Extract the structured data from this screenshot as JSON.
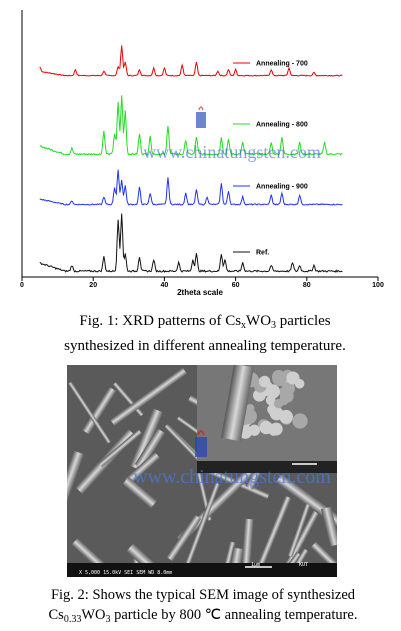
{
  "chart_data": {
    "type": "line",
    "xlabel": "2theta scale",
    "xlim": [
      0,
      100
    ],
    "xticks": [
      "0",
      "20",
      "40",
      "60",
      "80",
      "100"
    ],
    "series": [
      {
        "name": "Annealing - 700",
        "color": "#ee0000",
        "peaks": [
          [
            5,
            0.15
          ],
          [
            15,
            0.2
          ],
          [
            23,
            0.15
          ],
          [
            27,
            0.3
          ],
          [
            28,
            1.0
          ],
          [
            29,
            0.45
          ],
          [
            33,
            0.2
          ],
          [
            37,
            0.25
          ],
          [
            40,
            0.25
          ],
          [
            45,
            0.35
          ],
          [
            49,
            0.45
          ],
          [
            55,
            0.15
          ],
          [
            58,
            0.2
          ],
          [
            60,
            0.2
          ],
          [
            70,
            0.2
          ],
          [
            75,
            0.25
          ],
          [
            82,
            0.1
          ]
        ]
      },
      {
        "name": "Annealing - 800",
        "color": "#22dd22",
        "peaks": [
          [
            14,
            0.1
          ],
          [
            23,
            0.4
          ],
          [
            26,
            0.35
          ],
          [
            27,
            0.9
          ],
          [
            28,
            1.0
          ],
          [
            29,
            0.75
          ],
          [
            33,
            0.35
          ],
          [
            36,
            0.3
          ],
          [
            41,
            0.5
          ],
          [
            46,
            0.25
          ],
          [
            49,
            0.3
          ],
          [
            56,
            0.3
          ],
          [
            58,
            0.25
          ],
          [
            62,
            0.2
          ],
          [
            70,
            0.2
          ],
          [
            73,
            0.3
          ],
          [
            78,
            0.2
          ],
          [
            85,
            0.2
          ]
        ]
      },
      {
        "name": "Annealing - 900",
        "color": "#2233ee",
        "peaks": [
          [
            14,
            0.1
          ],
          [
            23,
            0.2
          ],
          [
            26,
            0.45
          ],
          [
            27,
            0.9
          ],
          [
            28,
            0.65
          ],
          [
            29,
            0.5
          ],
          [
            33,
            0.45
          ],
          [
            36,
            0.3
          ],
          [
            41,
            0.7
          ],
          [
            46,
            0.3
          ],
          [
            49,
            0.4
          ],
          [
            52,
            0.2
          ],
          [
            56,
            0.55
          ],
          [
            58,
            0.35
          ],
          [
            62,
            0.2
          ],
          [
            70,
            0.25
          ],
          [
            73,
            0.3
          ],
          [
            78,
            0.25
          ]
        ]
      },
      {
        "name": "Ref.",
        "color": "#111111",
        "peaks": [
          [
            14,
            0.1
          ],
          [
            23,
            0.25
          ],
          [
            27,
            0.9
          ],
          [
            28,
            1.0
          ],
          [
            29,
            0.3
          ],
          [
            33,
            0.25
          ],
          [
            37,
            0.2
          ],
          [
            44,
            0.15
          ],
          [
            48,
            0.2
          ],
          [
            49,
            0.3
          ],
          [
            56,
            0.3
          ],
          [
            57,
            0.2
          ],
          [
            62,
            0.15
          ],
          [
            70,
            0.1
          ],
          [
            76,
            0.15
          ],
          [
            78,
            0.1
          ],
          [
            82,
            0.1
          ]
        ]
      }
    ]
  },
  "watermark": "www.chinatungsten.com",
  "caption1": {
    "pre": "Fig. 1: XRD patterns of Cs",
    "sub1": "x",
    "mid": "WO",
    "sub2": "3",
    "post": " particles",
    "line2": "synthesized in different annealing temperature."
  },
  "sem": {
    "scale_bar": "1μm",
    "meta": "X 5,000   15.0kV SEI   SEM   WD 8.0mm",
    "org": "KUT"
  },
  "caption2": {
    "line1": "Fig. 2: Shows the typical SEM image of synthesized",
    "pre": "Cs",
    "sub1": "0.33",
    "mid": "WO",
    "sub2": "3",
    "post": "  particle by 800 ℃ annealing temperature."
  }
}
